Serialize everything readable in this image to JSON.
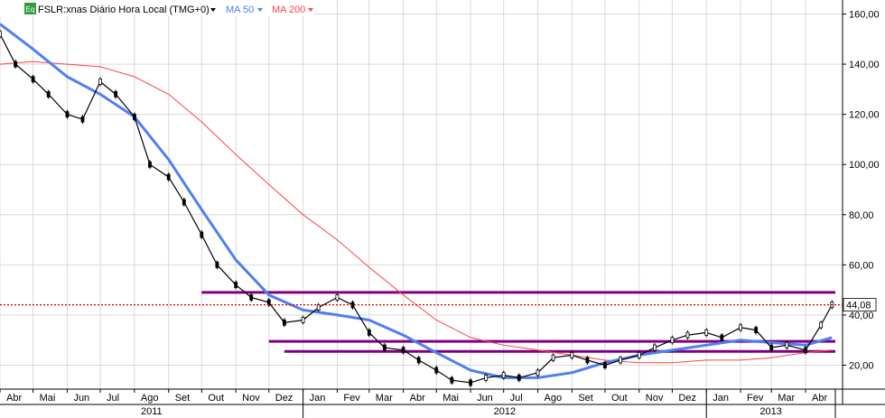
{
  "header": {
    "eq_badge": "Eq",
    "symbol_label": "FSLR:xnas Diário Hora Local (TMG+0)",
    "ma50_label": "MA 50",
    "ma200_label": "MA 200"
  },
  "colors": {
    "price": "#000000",
    "ma50": "#4f7ff2",
    "ma200": "#ff4444",
    "support_lines": "#800080",
    "last_price_line": "#cc0000",
    "grid": "#d9d9d9",
    "eq_badge": "#2e9e3e"
  },
  "icons": [
    "eq-badge-icon",
    "dropdown-triangle-icon"
  ],
  "chart_data": {
    "type": "line",
    "title": "FSLR:xnas Diário Hora Local (TMG+0)",
    "ylim": [
      8,
      166
    ],
    "y_ticks": [
      "20,00",
      "40,00",
      "60,00",
      "80,00",
      "100,00",
      "120,00",
      "140,00",
      "160,00"
    ],
    "grid": true,
    "y_axis_side": "right",
    "x_month_labels": [
      "Abr",
      "Mai",
      "Jun",
      "Jul",
      "Ago",
      "Set",
      "Out",
      "Nov",
      "Dez",
      "Jan",
      "Fev",
      "Mar",
      "Abr",
      "Mai",
      "Jun",
      "Jul",
      "Ago",
      "Set",
      "Out",
      "Nov",
      "Dez",
      "Jan",
      "Fev",
      "Mar",
      "Abr"
    ],
    "x_year_labels": [
      "2011",
      "2012",
      "2013"
    ],
    "last_price_label": "44,08",
    "last_price": 44.08,
    "series": [
      {
        "name": "FSLR:xnas",
        "style": "candlestick",
        "x": [
          "2011-04-01",
          "2011-04-15",
          "2011-05-01",
          "2011-05-15",
          "2011-06-01",
          "2011-06-15",
          "2011-07-01",
          "2011-07-15",
          "2011-08-01",
          "2011-08-15",
          "2011-09-01",
          "2011-09-15",
          "2011-10-01",
          "2011-10-15",
          "2011-11-01",
          "2011-11-15",
          "2011-12-01",
          "2011-12-15",
          "2012-01-01",
          "2012-01-15",
          "2012-02-01",
          "2012-02-15",
          "2012-03-01",
          "2012-03-15",
          "2012-04-01",
          "2012-04-15",
          "2012-05-01",
          "2012-05-15",
          "2012-06-01",
          "2012-06-15",
          "2012-07-01",
          "2012-07-15",
          "2012-08-01",
          "2012-08-15",
          "2012-09-01",
          "2012-09-15",
          "2012-10-01",
          "2012-10-15",
          "2012-11-01",
          "2012-11-15",
          "2012-12-01",
          "2012-12-15",
          "2013-01-01",
          "2013-01-15",
          "2013-02-01",
          "2013-02-15",
          "2013-03-01",
          "2013-03-15",
          "2013-04-01",
          "2013-04-15",
          "2013-04-25"
        ],
        "values": [
          152,
          140,
          134,
          128,
          120,
          118,
          133,
          128,
          119,
          100,
          95,
          85,
          72,
          60,
          52,
          47,
          45,
          37,
          38,
          43,
          47,
          44,
          33,
          27,
          26,
          22,
          18,
          14,
          13,
          15,
          16,
          15,
          17,
          23,
          24,
          22,
          20,
          22,
          24,
          27,
          30,
          32,
          33,
          31,
          35,
          34,
          27,
          28,
          26,
          36,
          44.08
        ]
      },
      {
        "name": "MA 50",
        "style": "line",
        "x": [
          "2011-04-01",
          "2011-05-01",
          "2011-06-01",
          "2011-07-01",
          "2011-08-01",
          "2011-09-01",
          "2011-10-01",
          "2011-11-01",
          "2011-12-01",
          "2012-01-01",
          "2012-02-01",
          "2012-03-01",
          "2012-04-01",
          "2012-05-01",
          "2012-06-01",
          "2012-07-01",
          "2012-08-01",
          "2012-09-01",
          "2012-10-01",
          "2012-11-01",
          "2012-12-01",
          "2013-01-01",
          "2013-02-01",
          "2013-03-01",
          "2013-04-01",
          "2013-04-25"
        ],
        "values": [
          156,
          146,
          135,
          128,
          119,
          102,
          82,
          62,
          48,
          42,
          40,
          38,
          32,
          25,
          18,
          15,
          15,
          17,
          21,
          24,
          26,
          28,
          30,
          29,
          28,
          31
        ]
      },
      {
        "name": "MA 200",
        "style": "line",
        "x": [
          "2011-04-01",
          "2011-05-01",
          "2011-06-01",
          "2011-07-01",
          "2011-08-01",
          "2011-09-01",
          "2011-10-01",
          "2011-11-01",
          "2011-12-01",
          "2012-01-01",
          "2012-02-01",
          "2012-03-01",
          "2012-04-01",
          "2012-05-01",
          "2012-06-01",
          "2012-07-01",
          "2012-08-01",
          "2012-09-01",
          "2012-10-01",
          "2012-11-01",
          "2012-12-01",
          "2013-01-01",
          "2013-02-01",
          "2013-03-01",
          "2013-04-01",
          "2013-04-25"
        ],
        "values": [
          140,
          141,
          140,
          139,
          135,
          128,
          117,
          104,
          92,
          80,
          70,
          59,
          48,
          38,
          31,
          28,
          26,
          24,
          22,
          21,
          21,
          22,
          22,
          23,
          25,
          26
        ]
      },
      {
        "name": "Support/Resistance",
        "style": "horizontal",
        "x": [
          "2011-10-01",
          "2013-04-28"
        ],
        "values": [
          49,
          49
        ]
      },
      {
        "name": "Support/Resistance 2",
        "style": "horizontal",
        "x": [
          "2011-12-01",
          "2013-04-28"
        ],
        "values": [
          29.5,
          29.5
        ]
      },
      {
        "name": "Support/Resistance 3",
        "style": "horizontal",
        "x": [
          "2011-12-15",
          "2013-04-28"
        ],
        "values": [
          25.5,
          25.5
        ]
      }
    ]
  }
}
